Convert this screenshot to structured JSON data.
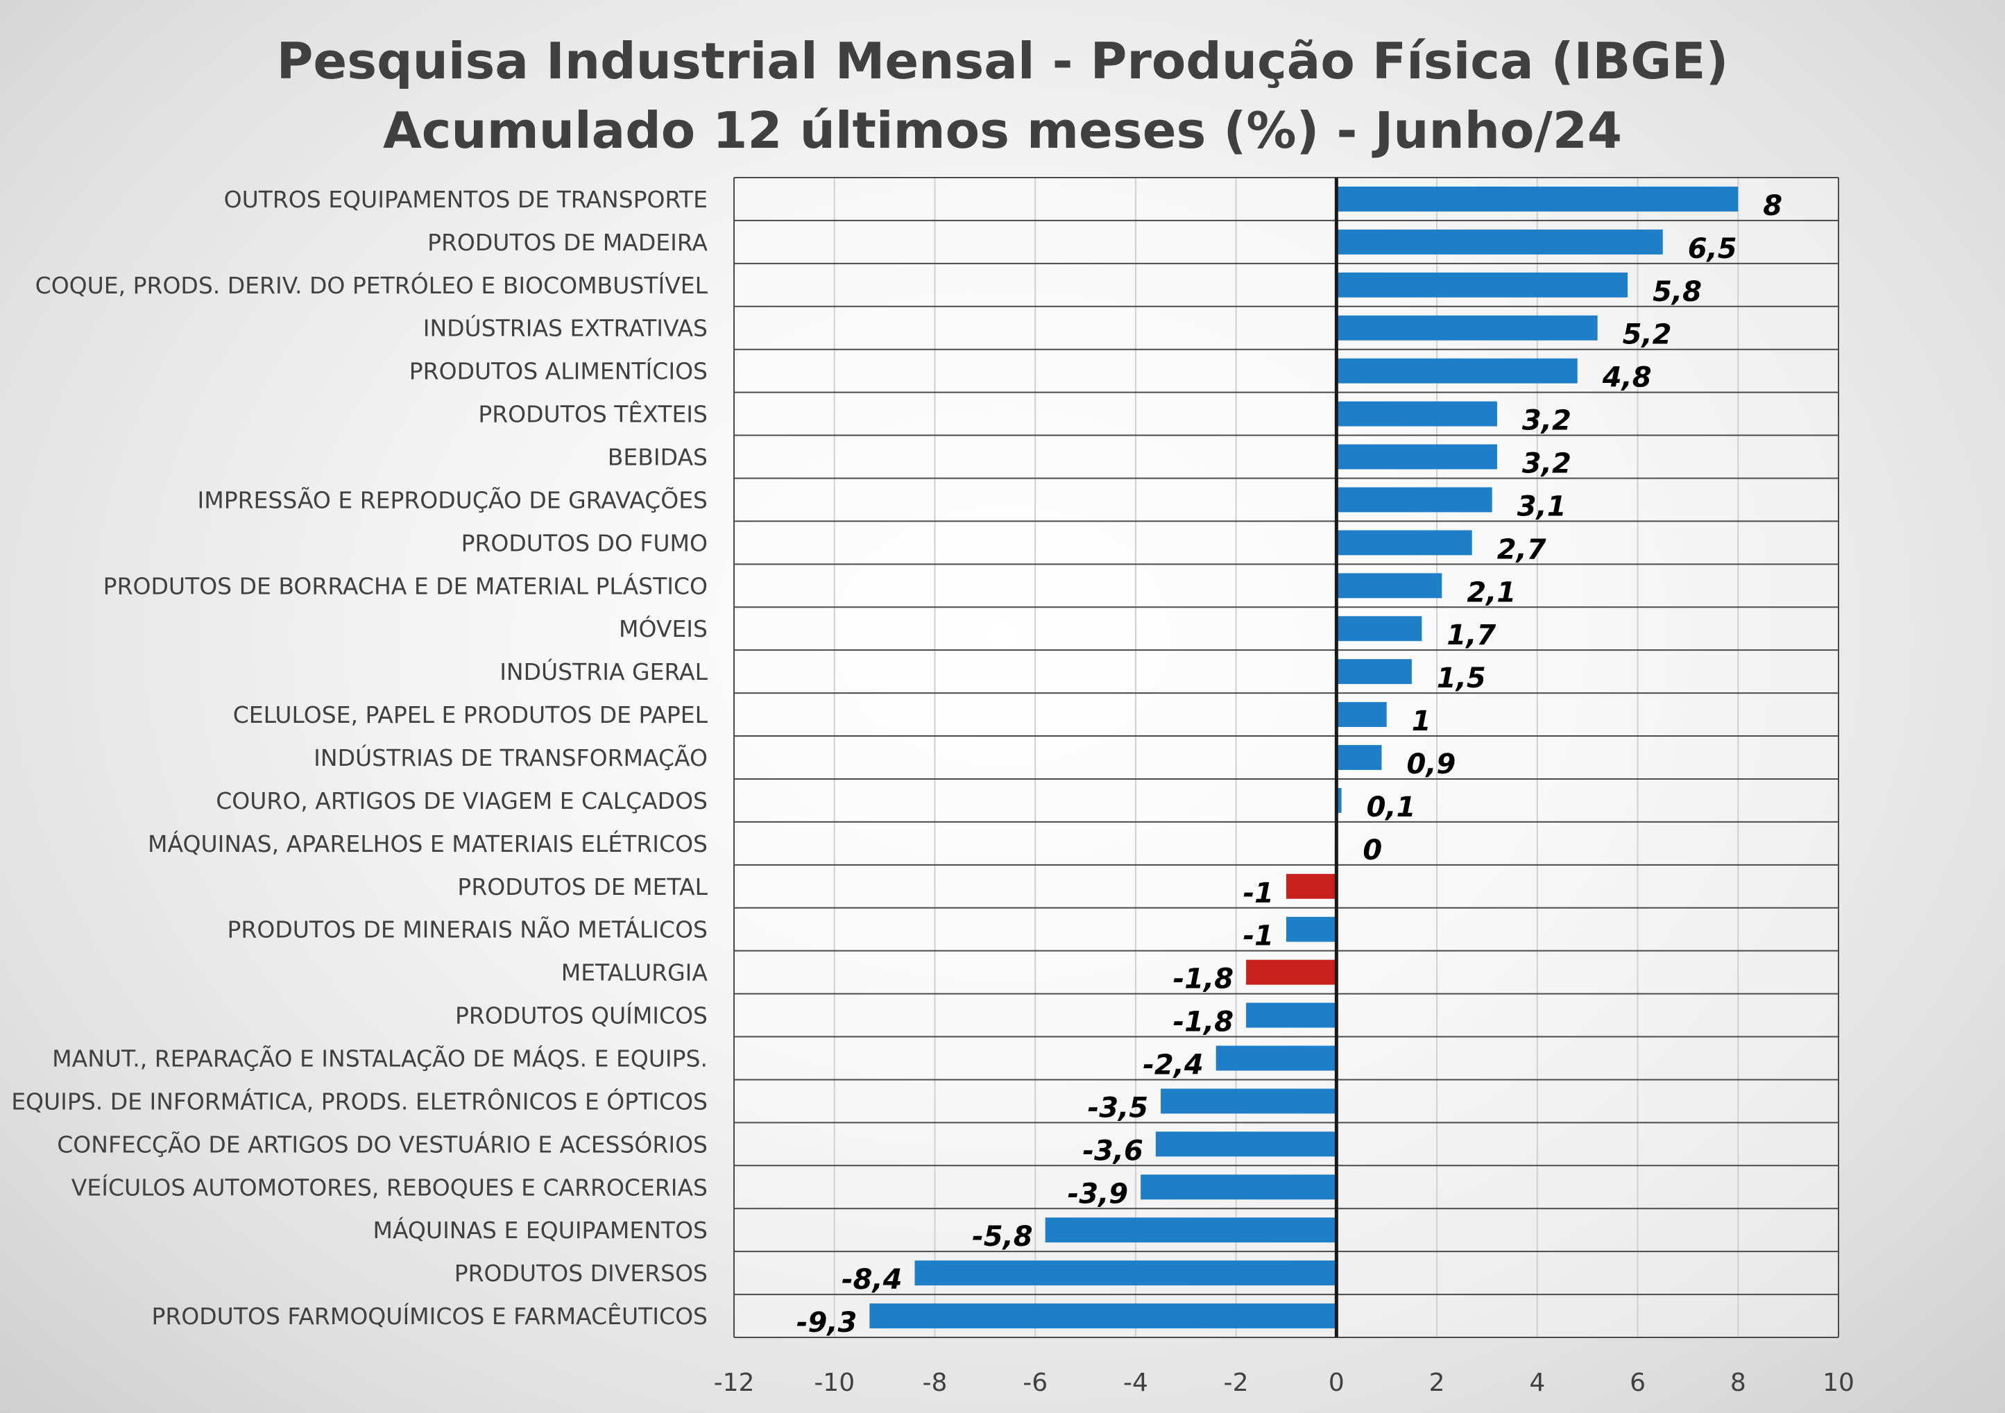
{
  "chart_data": {
    "type": "bar",
    "orientation": "horizontal",
    "title": "Pesquisa Industrial Mensal - Produção Física (IBGE)",
    "subtitle": "Acumulado 12 últimos meses (%) - Junho/24",
    "xlim": [
      -12,
      10
    ],
    "x_ticks": [
      -12,
      -10,
      -8,
      -6,
      -4,
      -2,
      0,
      2,
      4,
      6,
      8,
      10
    ],
    "x_tick_labels": [
      "-12",
      "-10",
      "-8",
      "-6",
      "-4",
      "-2",
      "0",
      "2",
      "4",
      "6",
      "8",
      "10"
    ],
    "grid": true,
    "legend": "none",
    "colors": {
      "default": "#1f7ec8",
      "highlight": "#c9211e"
    },
    "categories": [
      "OUTROS EQUIPAMENTOS DE TRANSPORTE",
      "PRODUTOS DE MADEIRA",
      "COQUE, PRODS. DERIV. DO PETRÓLEO E BIOCOMBUSTÍVEL",
      "INDÚSTRIAS EXTRATIVAS",
      "PRODUTOS ALIMENTÍCIOS",
      "PRODUTOS TÊXTEIS",
      "BEBIDAS",
      "IMPRESSÃO E REPRODUÇÃO DE GRAVAÇÕES",
      "PRODUTOS DO FUMO",
      "PRODUTOS DE BORRACHA E DE MATERIAL PLÁSTICO",
      "MÓVEIS",
      "INDÚSTRIA GERAL",
      "CELULOSE, PAPEL E PRODUTOS DE PAPEL",
      "INDÚSTRIAS DE TRANSFORMAÇÃO",
      "COURO, ARTIGOS DE VIAGEM E CALÇADOS",
      "MÁQUINAS, APARELHOS E MATERIAIS ELÉTRICOS",
      "PRODUTOS DE METAL",
      "PRODUTOS DE MINERAIS NÃO METÁLICOS",
      "METALURGIA",
      "PRODUTOS QUÍMICOS",
      "MANUT., REPARAÇÃO E INSTALAÇÃO DE MÁQS. E EQUIPS.",
      "EQUIPS. DE INFORMÁTICA, PRODS. ELETRÔNICOS E ÓPTICOS",
      "CONFECÇÃO DE ARTIGOS DO VESTUÁRIO E ACESSÓRIOS",
      "VEÍCULOS AUTOMOTORES, REBOQUES E CARROCERIAS",
      "MÁQUINAS E EQUIPAMENTOS",
      "PRODUTOS DIVERSOS",
      "PRODUTOS FARMOQUÍMICOS E FARMACÊUTICOS"
    ],
    "values": [
      8,
      6.5,
      5.8,
      5.2,
      4.8,
      3.2,
      3.2,
      3.1,
      2.7,
      2.1,
      1.7,
      1.5,
      1,
      0.9,
      0.1,
      0,
      -1,
      -1,
      -1.8,
      -1.8,
      -2.4,
      -3.5,
      -3.6,
      -3.9,
      -5.8,
      -8.4,
      -9.3
    ],
    "value_labels": [
      "8",
      "6,5",
      "5,8",
      "5,2",
      "4,8",
      "3,2",
      "3,2",
      "3,1",
      "2,7",
      "2,1",
      "1,7",
      "1,5",
      "1",
      "0,9",
      "0,1",
      "0",
      "-1",
      "-1",
      "-1,8",
      "-1,8",
      "-2,4",
      "-3,5",
      "-3,6",
      "-3,9",
      "-5,8",
      "-8,4",
      "-9,3"
    ],
    "highlighted": [
      "PRODUTOS DE METAL",
      "METALURGIA"
    ]
  }
}
